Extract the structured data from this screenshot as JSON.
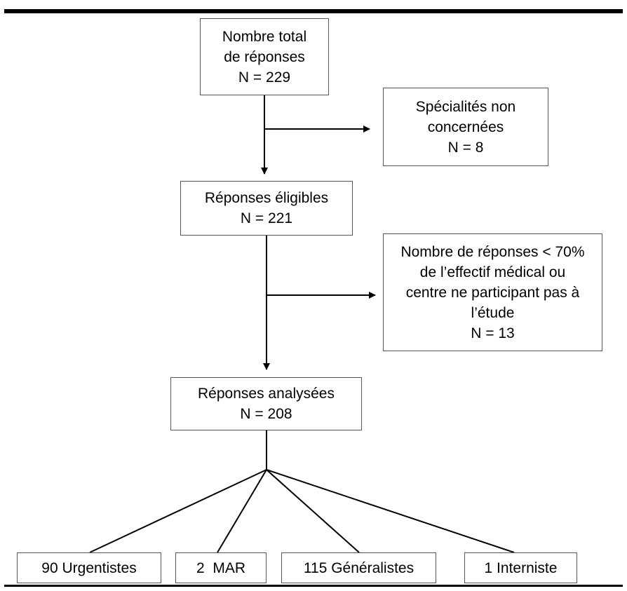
{
  "diagram": {
    "total": {
      "line1": "Nombre total",
      "line2": "de réponses",
      "count": "N = 229"
    },
    "excluded1": {
      "line1": "Spécialités non",
      "line2": "concernées",
      "count": "N = 8"
    },
    "eligible": {
      "line1": "Réponses éligibles",
      "count": "N = 221"
    },
    "excluded2": {
      "line1": "Nombre de réponses < 70%",
      "line2": "de l’effectif médical ou",
      "line3": "centre ne participant pas à",
      "line4": "l’étude",
      "count": "N = 13"
    },
    "analyzed": {
      "line1": "Réponses analysées",
      "count": "N = 208"
    },
    "groups": [
      {
        "label": "90 Urgentistes"
      },
      {
        "label": "2  MAR"
      },
      {
        "label": "115 Généralistes"
      },
      {
        "label": "1 Interniste"
      }
    ]
  }
}
